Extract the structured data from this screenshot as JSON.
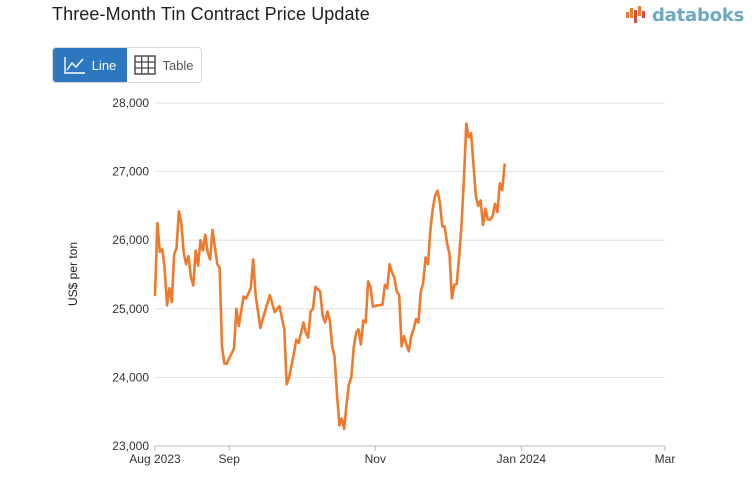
{
  "header": {
    "title": "Three-Month Tin Contract Price Update",
    "logo_text": "databoks"
  },
  "toggle": {
    "line_label": "Line",
    "table_label": "Table"
  },
  "colors": {
    "line": "#ef7a2e",
    "active_button": "#2c77bf",
    "logo": "#6fa8c4"
  },
  "chart_data": {
    "type": "line",
    "title": "Three-Month Tin Contract Price Update",
    "xlabel": "",
    "ylabel": "US$ per ton",
    "ylim": [
      23000,
      28000
    ],
    "yticks": [
      23000,
      24000,
      25000,
      26000,
      27000,
      28000
    ],
    "ytick_labels": [
      "23,000",
      "24,000",
      "25,000",
      "26,000",
      "27,000",
      "28,000"
    ],
    "xlim": [
      "2023-08-01",
      "2024-03-01"
    ],
    "xticks": [
      {
        "date": "2023-08-01",
        "label": "Aug 2023"
      },
      {
        "date": "2023-09-01",
        "label": "Sep"
      },
      {
        "date": "2023-11-01",
        "label": "Nov"
      },
      {
        "date": "2024-01-01",
        "label": "Jan 2024"
      },
      {
        "date": "2024-03-01",
        "label": "Mar"
      }
    ],
    "grid": true,
    "legend": "none",
    "series": [
      {
        "color": "#ef7a2e",
        "points": [
          [
            "2023-08-01",
            25200
          ],
          [
            "2023-08-02",
            26250
          ],
          [
            "2023-08-03",
            25830
          ],
          [
            "2023-08-04",
            25870
          ],
          [
            "2023-08-05",
            25600
          ],
          [
            "2023-08-06",
            25050
          ],
          [
            "2023-08-07",
            25300
          ],
          [
            "2023-08-08",
            25100
          ],
          [
            "2023-08-09",
            25800
          ],
          [
            "2023-08-10",
            25880
          ],
          [
            "2023-08-11",
            26420
          ],
          [
            "2023-08-12",
            26250
          ],
          [
            "2023-08-13",
            25820
          ],
          [
            "2023-08-14",
            25650
          ],
          [
            "2023-08-15",
            25770
          ],
          [
            "2023-08-16",
            25460
          ],
          [
            "2023-08-17",
            25340
          ],
          [
            "2023-08-18",
            25850
          ],
          [
            "2023-08-19",
            25630
          ],
          [
            "2023-08-20",
            26000
          ],
          [
            "2023-08-21",
            25850
          ],
          [
            "2023-08-22",
            26080
          ],
          [
            "2023-08-23",
            25820
          ],
          [
            "2023-08-24",
            25720
          ],
          [
            "2023-08-25",
            26150
          ],
          [
            "2023-08-26",
            25900
          ],
          [
            "2023-08-27",
            25650
          ],
          [
            "2023-08-28",
            25600
          ],
          [
            "2023-08-29",
            24450
          ],
          [
            "2023-08-30",
            24200
          ],
          [
            "2023-08-31",
            24200
          ],
          [
            "2023-09-01",
            24280
          ],
          [
            "2023-09-03",
            24420
          ],
          [
            "2023-09-04",
            25000
          ],
          [
            "2023-09-05",
            24750
          ],
          [
            "2023-09-07",
            25180
          ],
          [
            "2023-09-08",
            25150
          ],
          [
            "2023-09-10",
            25300
          ],
          [
            "2023-09-11",
            25720
          ],
          [
            "2023-09-12",
            25200
          ],
          [
            "2023-09-14",
            24720
          ],
          [
            "2023-09-15",
            24850
          ],
          [
            "2023-09-18",
            25200
          ],
          [
            "2023-09-20",
            24950
          ],
          [
            "2023-09-22",
            25040
          ],
          [
            "2023-09-24",
            24700
          ],
          [
            "2023-09-25",
            23900
          ],
          [
            "2023-09-26",
            24000
          ],
          [
            "2023-09-28",
            24350
          ],
          [
            "2023-09-29",
            24550
          ],
          [
            "2023-09-30",
            24500
          ],
          [
            "2023-10-02",
            24800
          ],
          [
            "2023-10-03",
            24650
          ],
          [
            "2023-10-04",
            24580
          ],
          [
            "2023-10-05",
            24960
          ],
          [
            "2023-10-06",
            25000
          ],
          [
            "2023-10-07",
            25320
          ],
          [
            "2023-10-09",
            25250
          ],
          [
            "2023-10-10",
            24900
          ],
          [
            "2023-10-11",
            24800
          ],
          [
            "2023-10-12",
            24960
          ],
          [
            "2023-10-13",
            24830
          ],
          [
            "2023-10-14",
            24450
          ],
          [
            "2023-10-15",
            24300
          ],
          [
            "2023-10-16",
            23750
          ],
          [
            "2023-10-17",
            23300
          ],
          [
            "2023-10-18",
            23400
          ],
          [
            "2023-10-19",
            23250
          ],
          [
            "2023-10-20",
            23600
          ],
          [
            "2023-10-21",
            23900
          ],
          [
            "2023-10-22",
            24000
          ],
          [
            "2023-10-23",
            24430
          ],
          [
            "2023-10-24",
            24650
          ],
          [
            "2023-10-25",
            24700
          ],
          [
            "2023-10-26",
            24480
          ],
          [
            "2023-10-27",
            24830
          ],
          [
            "2023-10-28",
            24800
          ],
          [
            "2023-10-29",
            25400
          ],
          [
            "2023-10-30",
            25320
          ],
          [
            "2023-10-31",
            25030
          ],
          [
            "2023-11-02",
            25050
          ],
          [
            "2023-11-04",
            25060
          ],
          [
            "2023-11-05",
            25350
          ],
          [
            "2023-11-06",
            25300
          ],
          [
            "2023-11-07",
            25650
          ],
          [
            "2023-11-08",
            25530
          ],
          [
            "2023-11-09",
            25450
          ],
          [
            "2023-11-10",
            25250
          ],
          [
            "2023-11-11",
            25200
          ],
          [
            "2023-11-12",
            24450
          ],
          [
            "2023-11-13",
            24600
          ],
          [
            "2023-11-14",
            24480
          ],
          [
            "2023-11-15",
            24380
          ],
          [
            "2023-11-16",
            24600
          ],
          [
            "2023-11-17",
            24700
          ],
          [
            "2023-11-18",
            24850
          ],
          [
            "2023-11-19",
            24800
          ],
          [
            "2023-11-20",
            25250
          ],
          [
            "2023-11-21",
            25380
          ],
          [
            "2023-11-22",
            25750
          ],
          [
            "2023-11-23",
            25650
          ],
          [
            "2023-11-24",
            26150
          ],
          [
            "2023-11-25",
            26450
          ],
          [
            "2023-11-26",
            26650
          ],
          [
            "2023-11-27",
            26720
          ],
          [
            "2023-11-28",
            26550
          ],
          [
            "2023-11-29",
            26200
          ],
          [
            "2023-11-30",
            26200
          ],
          [
            "2023-12-01",
            25950
          ],
          [
            "2023-12-02",
            25800
          ],
          [
            "2023-12-03",
            25150
          ],
          [
            "2023-12-04",
            25350
          ],
          [
            "2023-12-05",
            25360
          ],
          [
            "2023-12-06",
            25750
          ],
          [
            "2023-12-07",
            26220
          ],
          [
            "2023-12-08",
            26880
          ],
          [
            "2023-12-09",
            27700
          ],
          [
            "2023-12-10",
            27500
          ],
          [
            "2023-12-11",
            27560
          ],
          [
            "2023-12-12",
            27100
          ],
          [
            "2023-12-13",
            26650
          ],
          [
            "2023-12-14",
            26500
          ],
          [
            "2023-12-15",
            26580
          ],
          [
            "2023-12-16",
            26220
          ],
          [
            "2023-12-17",
            26460
          ],
          [
            "2023-12-18",
            26300
          ],
          [
            "2023-12-19",
            26300
          ],
          [
            "2023-12-20",
            26350
          ],
          [
            "2023-12-21",
            26530
          ],
          [
            "2023-12-22",
            26410
          ],
          [
            "2023-12-23",
            26830
          ],
          [
            "2023-12-24",
            26730
          ],
          [
            "2023-12-25",
            27100
          ]
        ]
      }
    ]
  }
}
